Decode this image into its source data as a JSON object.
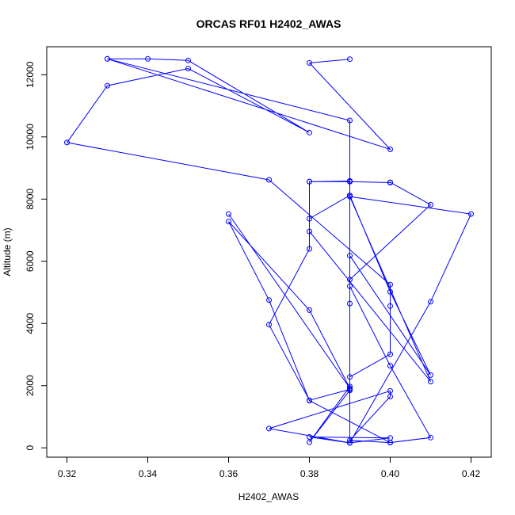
{
  "chart_data": {
    "type": "line",
    "title": "ORCAS RF01 H2402_AWAS",
    "xlabel": "H2402_AWAS",
    "ylabel": "Altitude (m)",
    "xlim": [
      0.315,
      0.425
    ],
    "ylim": [
      -300,
      12900
    ],
    "xticks": [
      0.32,
      0.34,
      0.36,
      0.38,
      0.4,
      0.42
    ],
    "xtick_labels": [
      "0.32",
      "0.34",
      "0.36",
      "0.38",
      "0.40",
      "0.42"
    ],
    "yticks": [
      0,
      2000,
      4000,
      6000,
      8000,
      10000,
      12000
    ],
    "ytick_labels": [
      "0",
      "2000",
      "4000",
      "6000",
      "8000",
      "10000",
      "12000"
    ],
    "color": "#0000ff",
    "grid": false,
    "series": [
      {
        "marker": "open-circle",
        "points": [
          [
            0.39,
            12500
          ],
          [
            0.38,
            12380
          ],
          [
            0.4,
            9600
          ],
          [
            0.33,
            12510
          ],
          [
            0.34,
            12510
          ],
          [
            0.35,
            12460
          ],
          [
            0.38,
            10140
          ],
          [
            0.35,
            12200
          ],
          [
            0.33,
            11650
          ],
          [
            0.32,
            9820
          ],
          [
            0.37,
            8620
          ],
          [
            0.4,
            5250
          ],
          [
            0.4,
            4560
          ],
          [
            0.4,
            3010
          ],
          [
            0.39,
            2280
          ],
          [
            0.39,
            8580
          ],
          [
            0.38,
            8560
          ],
          [
            0.39,
            8580
          ],
          [
            0.39,
            6180
          ],
          [
            0.41,
            2340
          ],
          [
            0.4,
            5020
          ],
          [
            0.39,
            8120
          ],
          [
            0.38,
            7370
          ],
          [
            0.38,
            6960
          ],
          [
            0.41,
            2130
          ],
          [
            0.39,
            8080
          ],
          [
            0.42,
            7520
          ],
          [
            0.41,
            4700
          ],
          [
            0.39,
            160
          ],
          [
            0.37,
            620
          ],
          [
            0.4,
            1830
          ],
          [
            0.4,
            1650
          ],
          [
            0.39,
            240
          ],
          [
            0.4,
            170
          ],
          [
            0.41,
            330
          ],
          [
            0.4,
            2640
          ],
          [
            0.39,
            5200
          ],
          [
            0.39,
            1880
          ],
          [
            0.38,
            1530
          ],
          [
            0.37,
            3960
          ],
          [
            0.38,
            6400
          ],
          [
            0.38,
            8560
          ],
          [
            0.39,
            8560
          ],
          [
            0.4,
            8530
          ],
          [
            0.4,
            8540
          ],
          [
            0.41,
            7820
          ],
          [
            0.39,
            5410
          ],
          [
            0.39,
            4640
          ],
          [
            0.39,
            1970
          ],
          [
            0.38,
            180
          ],
          [
            0.39,
            1850
          ],
          [
            0.39,
            160
          ],
          [
            0.4,
            320
          ],
          [
            0.38,
            350
          ],
          [
            0.39,
            160
          ],
          [
            0.39,
            10530
          ],
          [
            0.33,
            12510
          ]
        ]
      },
      {
        "marker": "open-circle",
        "points": [
          [
            0.36,
            7520
          ],
          [
            0.39,
            1920
          ],
          [
            0.38,
            4430
          ],
          [
            0.36,
            7280
          ],
          [
            0.37,
            4750
          ],
          [
            0.38,
            1520
          ],
          [
            0.4,
            170
          ]
        ]
      }
    ]
  }
}
